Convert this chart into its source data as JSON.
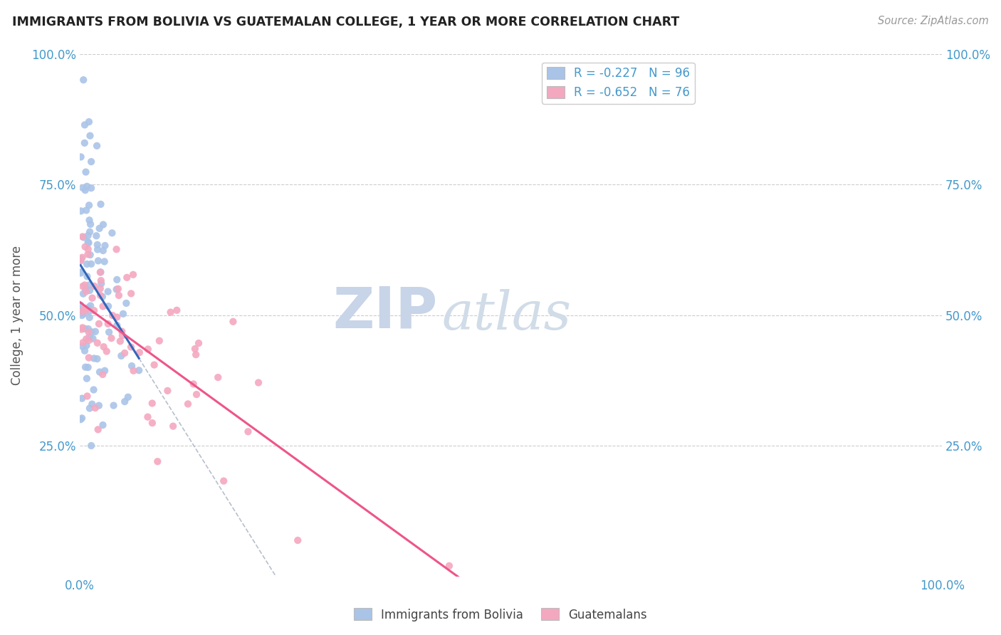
{
  "title": "IMMIGRANTS FROM BOLIVIA VS GUATEMALAN COLLEGE, 1 YEAR OR MORE CORRELATION CHART",
  "source": "Source: ZipAtlas.com",
  "ylabel": "College, 1 year or more",
  "legend_blue_label": "R = -0.227   N = 96",
  "legend_pink_label": "R = -0.652   N = 76",
  "scatter_blue_color": "#aac4e8",
  "scatter_pink_color": "#f4a8c0",
  "line_blue_color": "#3366bb",
  "line_pink_color": "#ee5588",
  "line_gray_color": "#b0b8c8",
  "watermark_zip_color": "#c8d4e8",
  "watermark_atlas_color": "#d0dce8",
  "background_color": "#ffffff",
  "grid_color": "#cccccc",
  "title_color": "#222222",
  "axis_label_color": "#4499cc",
  "tick_label_color": "#4499cc",
  "blue_R": -0.227,
  "blue_N": 96,
  "pink_R": -0.652,
  "pink_N": 76
}
